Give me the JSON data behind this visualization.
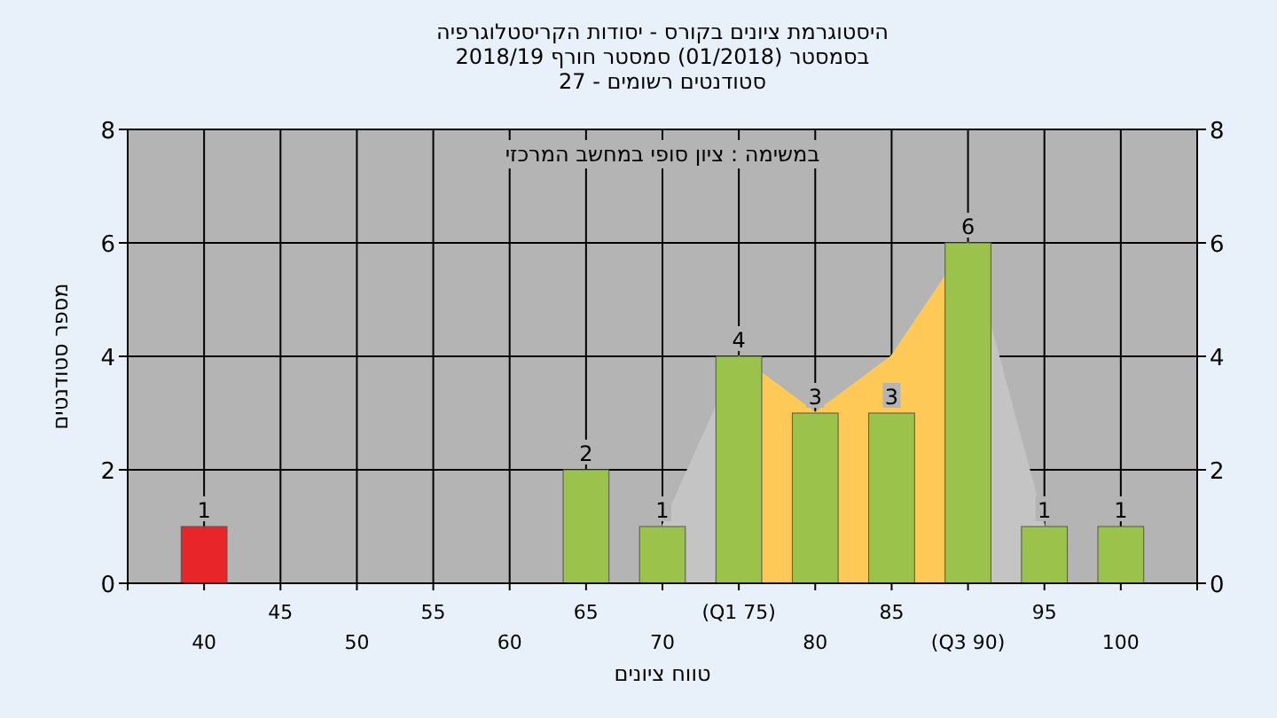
{
  "chart_data": {
    "type": "bar",
    "title": "היסטוגרמת ציונים בקורס - יסודות הקריסטלוגרפיה\nבסמסטר  (01/2018)  סמסטר חורף 2018/19\nסטודנטים רשומים - 27",
    "annotations": [
      "במשימה : ציון סופי במחשב המרכזי"
    ],
    "xlabel": "טווח ציונים",
    "ylabel": "מספר סטודנטים",
    "categories": [
      "40",
      "45",
      "50",
      "55",
      "60",
      "65",
      "70",
      "(Q1 75)",
      "80",
      "85",
      "(Q3 90)",
      "95",
      "100"
    ],
    "series": [
      {
        "type": "area",
        "color": "#c4c4c4",
        "values": [
          null,
          null,
          null,
          null,
          null,
          null,
          1,
          4,
          3,
          4,
          6,
          1,
          null
        ]
      },
      {
        "type": "area",
        "color": "#ffc957",
        "values": [
          null,
          null,
          null,
          null,
          null,
          null,
          null,
          4,
          3,
          4,
          6,
          null,
          null
        ]
      },
      {
        "colors": [
          "#e8262a",
          "#9bc24a",
          "#9bc24a",
          "#9bc24a",
          "#9bc24a",
          "#9bc24a",
          "#9bc24a",
          "#9bc24a",
          "#9bc24a",
          "#9bc24a",
          "#9bc24a",
          "#9bc24a",
          "#9bc24a"
        ],
        "values": [
          1,
          0,
          0,
          0,
          0,
          2,
          1,
          4,
          3,
          3,
          6,
          1,
          1
        ],
        "value_labels": [
          "1",
          null,
          null,
          null,
          null,
          "2",
          "1",
          "4",
          "3",
          "3",
          "6",
          "1",
          "1"
        ]
      }
    ],
    "ylim": [
      0,
      8
    ],
    "yticks": [
      0,
      2,
      4,
      6,
      8
    ],
    "y2lim": [
      0,
      8
    ],
    "y2ticks": [
      0,
      2,
      4,
      6,
      8
    ],
    "grid": true
  }
}
